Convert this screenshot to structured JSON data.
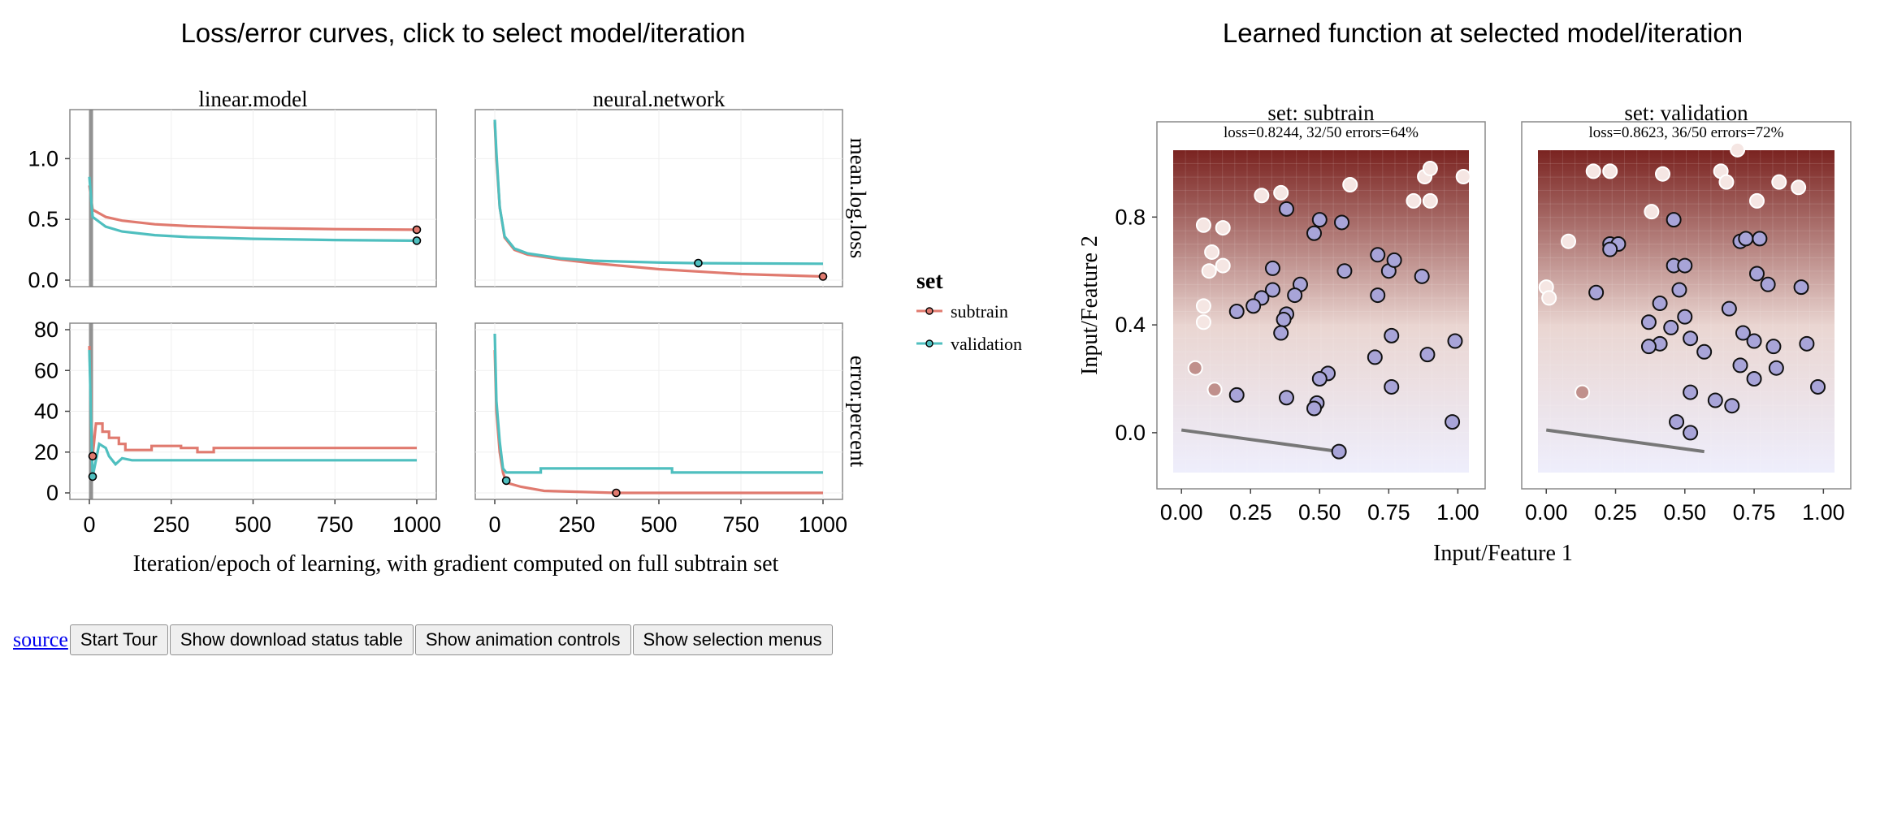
{
  "titles": {
    "left": "Loss/error curves, click to select model/iteration",
    "right": "Learned function at selected model/iteration"
  },
  "controls": {
    "source_link": "source",
    "buttons": [
      "Start Tour",
      "Show download status table",
      "Show animation controls",
      "Show selection menus"
    ]
  },
  "colors": {
    "subtrain": "#e07a6f",
    "validation": "#4fbfbf",
    "point_positive": "#f5e6e3",
    "point_negative": "#a8a4d8",
    "heat_high": "#7a2320",
    "heat_low": "#eeeefc",
    "boundary": "#777777"
  },
  "chart_data": [
    {
      "type": "line",
      "facets": {
        "columns": [
          "linear.model",
          "neural.network"
        ],
        "rows": [
          "mean.log.loss",
          "error.percent"
        ]
      },
      "xlabel": "Iteration/epoch of learning, with gradient computed on full subtrain set",
      "ylabel": "",
      "xlim": [
        0,
        1000
      ],
      "xticks": [
        "0",
        "250",
        "500",
        "750",
        "1000"
      ],
      "ylim_loss": [
        0,
        1.35
      ],
      "yticks_loss": [
        "0.0",
        "0.5",
        "1.0"
      ],
      "ylim_error": [
        0,
        80
      ],
      "yticks_error": [
        "0",
        "20",
        "40",
        "60",
        "80"
      ],
      "selected_iteration": 5,
      "legend": {
        "title": "set",
        "entries": [
          "subtrain",
          "validation"
        ],
        "placement": "right"
      },
      "series": {
        "linear.model": {
          "mean.log.loss": {
            "subtrain": [
              [
                0,
                0.78
              ],
              [
                10,
                0.58
              ],
              [
                50,
                0.52
              ],
              [
                100,
                0.49
              ],
              [
                200,
                0.46
              ],
              [
                300,
                0.445
              ],
              [
                500,
                0.43
              ],
              [
                750,
                0.42
              ],
              [
                1000,
                0.415
              ]
            ],
            "validation": [
              [
                0,
                0.85
              ],
              [
                10,
                0.52
              ],
              [
                50,
                0.44
              ],
              [
                100,
                0.4
              ],
              [
                200,
                0.37
              ],
              [
                300,
                0.355
              ],
              [
                500,
                0.34
              ],
              [
                750,
                0.33
              ],
              [
                1000,
                0.325
              ]
            ]
          },
          "error.percent": {
            "subtrain": [
              [
                0,
                72
              ],
              [
                10,
                18
              ],
              [
                20,
                34
              ],
              [
                40,
                34
              ],
              [
                40,
                30
              ],
              [
                60,
                30
              ],
              [
                60,
                27
              ],
              [
                90,
                27
              ],
              [
                90,
                24
              ],
              [
                110,
                24
              ],
              [
                110,
                21
              ],
              [
                190,
                21
              ],
              [
                190,
                23
              ],
              [
                280,
                23
              ],
              [
                280,
                22
              ],
              [
                330,
                22
              ],
              [
                330,
                20
              ],
              [
                380,
                20
              ],
              [
                380,
                22
              ],
              [
                1000,
                22
              ]
            ],
            "validation": [
              [
                0,
                70
              ],
              [
                10,
                8
              ],
              [
                20,
                16
              ],
              [
                30,
                24
              ],
              [
                50,
                22
              ],
              [
                60,
                18
              ],
              [
                80,
                14
              ],
              [
                100,
                17
              ],
              [
                130,
                16
              ],
              [
                1000,
                16
              ]
            ]
          },
          "markers": {
            "loss": {
              "subtrain": [
                1000,
                0.415
              ],
              "validation": [
                1000,
                0.325
              ]
            },
            "error": {
              "subtrain": [
                10,
                18
              ],
              "validation": [
                10,
                8
              ]
            }
          }
        },
        "neural.network": {
          "mean.log.loss": {
            "subtrain": [
              [
                0,
                1.3
              ],
              [
                5,
                1.0
              ],
              [
                15,
                0.6
              ],
              [
                30,
                0.35
              ],
              [
                60,
                0.25
              ],
              [
                100,
                0.21
              ],
              [
                200,
                0.17
              ],
              [
                300,
                0.14
              ],
              [
                500,
                0.09
              ],
              [
                750,
                0.05
              ],
              [
                1000,
                0.03
              ]
            ],
            "validation": [
              [
                0,
                1.32
              ],
              [
                5,
                1.05
              ],
              [
                15,
                0.6
              ],
              [
                30,
                0.36
              ],
              [
                60,
                0.26
              ],
              [
                100,
                0.22
              ],
              [
                200,
                0.18
              ],
              [
                300,
                0.16
              ],
              [
                500,
                0.145
              ],
              [
                620,
                0.14
              ],
              [
                1000,
                0.135
              ]
            ]
          },
          "error.percent": {
            "subtrain": [
              [
                0,
                70
              ],
              [
                5,
                40
              ],
              [
                15,
                20
              ],
              [
                25,
                10
              ],
              [
                35,
                5
              ],
              [
                80,
                3
              ],
              [
                150,
                1
              ],
              [
                370,
                0
              ],
              [
                1000,
                0
              ]
            ],
            "validation": [
              [
                0,
                78
              ],
              [
                5,
                45
              ],
              [
                15,
                25
              ],
              [
                25,
                12
              ],
              [
                35,
                10
              ],
              [
                140,
                10
              ],
              [
                140,
                12
              ],
              [
                540,
                12
              ],
              [
                540,
                10
              ],
              [
                1000,
                10
              ]
            ]
          },
          "markers": {
            "loss": {
              "subtrain": [
                1000,
                0.03
              ],
              "validation": [
                620,
                0.14
              ]
            },
            "error": {
              "subtrain": [
                370,
                0
              ],
              "validation": [
                35,
                6
              ]
            }
          }
        }
      }
    },
    {
      "type": "scatter",
      "facets": [
        "set: subtrain",
        "set: validation"
      ],
      "annotations": [
        "loss=0.8244, 32/50 errors=64%",
        "loss=0.8623, 36/50 errors=72%"
      ],
      "xlabel": "Input/Feature 1",
      "ylabel": "Input/Feature 2",
      "xlim": [
        -0.03,
        1.04
      ],
      "ylim": [
        -0.16,
        1.06
      ],
      "xticks": [
        "0.00",
        "0.25",
        "0.50",
        "0.75",
        "1.00"
      ],
      "yticks": [
        "0.0",
        "0.4",
        "0.8"
      ],
      "decision_boundary": [
        [
          0.0,
          0.01
        ],
        [
          0.57,
          -0.07
        ]
      ],
      "points": {
        "subtrain": [
          [
            0.08,
            0.77,
            "pos"
          ],
          [
            0.15,
            0.76,
            "pos"
          ],
          [
            0.29,
            0.88,
            "pos"
          ],
          [
            0.36,
            0.89,
            "pos"
          ],
          [
            0.61,
            0.92,
            "pos"
          ],
          [
            0.84,
            0.86,
            "pos"
          ],
          [
            0.88,
            0.95,
            "pos"
          ],
          [
            0.9,
            0.98,
            "pos"
          ],
          [
            0.9,
            0.86,
            "pos"
          ],
          [
            1.02,
            0.95,
            "pos"
          ],
          [
            0.11,
            0.67,
            "pos"
          ],
          [
            0.15,
            0.62,
            "pos"
          ],
          [
            0.1,
            0.6,
            "pos"
          ],
          [
            0.08,
            0.47,
            "pos"
          ],
          [
            0.08,
            0.41,
            "pos"
          ],
          [
            0.05,
            0.24,
            "mix"
          ],
          [
            0.12,
            0.16,
            "mix"
          ],
          [
            0.38,
            0.83,
            "neg"
          ],
          [
            0.48,
            0.74,
            "neg"
          ],
          [
            0.5,
            0.79,
            "neg"
          ],
          [
            0.58,
            0.78,
            "neg"
          ],
          [
            0.33,
            0.61,
            "neg"
          ],
          [
            0.43,
            0.55,
            "neg"
          ],
          [
            0.41,
            0.51,
            "neg"
          ],
          [
            0.33,
            0.53,
            "neg"
          ],
          [
            0.29,
            0.5,
            "neg"
          ],
          [
            0.26,
            0.47,
            "neg"
          ],
          [
            0.2,
            0.45,
            "neg"
          ],
          [
            0.38,
            0.44,
            "neg"
          ],
          [
            0.37,
            0.42,
            "neg"
          ],
          [
            0.36,
            0.37,
            "neg"
          ],
          [
            0.59,
            0.6,
            "neg"
          ],
          [
            0.71,
            0.66,
            "neg"
          ],
          [
            0.75,
            0.6,
            "neg"
          ],
          [
            0.77,
            0.64,
            "neg"
          ],
          [
            0.71,
            0.51,
            "neg"
          ],
          [
            0.87,
            0.58,
            "neg"
          ],
          [
            0.76,
            0.36,
            "neg"
          ],
          [
            0.7,
            0.28,
            "neg"
          ],
          [
            0.89,
            0.29,
            "neg"
          ],
          [
            0.99,
            0.34,
            "neg"
          ],
          [
            0.53,
            0.22,
            "neg"
          ],
          [
            0.5,
            0.2,
            "neg"
          ],
          [
            0.76,
            0.17,
            "neg"
          ],
          [
            0.2,
            0.14,
            "neg"
          ],
          [
            0.38,
            0.13,
            "neg"
          ],
          [
            0.49,
            0.11,
            "neg"
          ],
          [
            0.48,
            0.09,
            "neg"
          ],
          [
            0.98,
            0.04,
            "neg"
          ],
          [
            0.57,
            -0.07,
            "neg"
          ]
        ],
        "validation": [
          [
            0.69,
            1.05,
            "pos"
          ],
          [
            0.17,
            0.97,
            "pos"
          ],
          [
            0.23,
            0.97,
            "pos"
          ],
          [
            0.42,
            0.96,
            "pos"
          ],
          [
            0.63,
            0.97,
            "pos"
          ],
          [
            0.65,
            0.93,
            "pos"
          ],
          [
            0.84,
            0.93,
            "pos"
          ],
          [
            0.91,
            0.91,
            "pos"
          ],
          [
            0.76,
            0.86,
            "pos"
          ],
          [
            0.38,
            0.82,
            "pos"
          ],
          [
            0.08,
            0.71,
            "pos"
          ],
          [
            0.0,
            0.54,
            "pos"
          ],
          [
            0.01,
            0.5,
            "pos"
          ],
          [
            0.13,
            0.15,
            "mix"
          ],
          [
            0.46,
            0.79,
            "neg"
          ],
          [
            0.7,
            0.71,
            "neg"
          ],
          [
            0.72,
            0.72,
            "neg"
          ],
          [
            0.77,
            0.72,
            "neg"
          ],
          [
            0.23,
            0.7,
            "neg"
          ],
          [
            0.26,
            0.7,
            "neg"
          ],
          [
            0.23,
            0.68,
            "neg"
          ],
          [
            0.46,
            0.62,
            "neg"
          ],
          [
            0.5,
            0.62,
            "neg"
          ],
          [
            0.76,
            0.59,
            "neg"
          ],
          [
            0.8,
            0.55,
            "neg"
          ],
          [
            0.92,
            0.54,
            "neg"
          ],
          [
            0.18,
            0.52,
            "neg"
          ],
          [
            0.48,
            0.53,
            "neg"
          ],
          [
            0.41,
            0.48,
            "neg"
          ],
          [
            0.66,
            0.46,
            "neg"
          ],
          [
            0.5,
            0.43,
            "neg"
          ],
          [
            0.37,
            0.41,
            "neg"
          ],
          [
            0.45,
            0.39,
            "neg"
          ],
          [
            0.71,
            0.37,
            "neg"
          ],
          [
            0.52,
            0.35,
            "neg"
          ],
          [
            0.75,
            0.34,
            "neg"
          ],
          [
            0.41,
            0.33,
            "neg"
          ],
          [
            0.37,
            0.32,
            "neg"
          ],
          [
            0.82,
            0.32,
            "neg"
          ],
          [
            0.94,
            0.33,
            "neg"
          ],
          [
            0.57,
            0.3,
            "neg"
          ],
          [
            0.7,
            0.25,
            "neg"
          ],
          [
            0.83,
            0.24,
            "neg"
          ],
          [
            0.75,
            0.2,
            "neg"
          ],
          [
            0.52,
            0.15,
            "neg"
          ],
          [
            0.98,
            0.17,
            "neg"
          ],
          [
            0.61,
            0.12,
            "neg"
          ],
          [
            0.67,
            0.1,
            "neg"
          ],
          [
            0.47,
            0.04,
            "neg"
          ],
          [
            0.52,
            0.0,
            "neg"
          ]
        ]
      }
    }
  ]
}
